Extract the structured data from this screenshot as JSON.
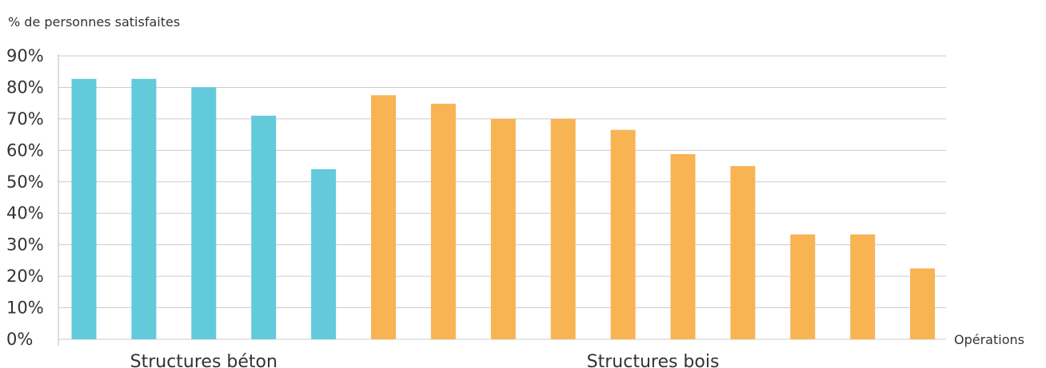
{
  "chart_data": {
    "type": "bar",
    "ylabel": "% de personnes satisfaites",
    "xlabel": "Opérations",
    "ylim": [
      0,
      90
    ],
    "yticks": [
      "0%",
      "10%",
      "20%",
      "30%",
      "40%",
      "50%",
      "60%",
      "70%",
      "80%",
      "90%"
    ],
    "grid": true,
    "groups": [
      {
        "label": "Structures béton",
        "color": "#62cadb",
        "values": [
          82.7,
          82.7,
          80.0,
          71.0,
          54.0
        ]
      },
      {
        "label": "Structures bois",
        "color": "#f8b353",
        "values": [
          77.5,
          74.8,
          70.0,
          70.0,
          66.5,
          58.8,
          55.0,
          33.3,
          33.3,
          22.5
        ]
      }
    ]
  }
}
